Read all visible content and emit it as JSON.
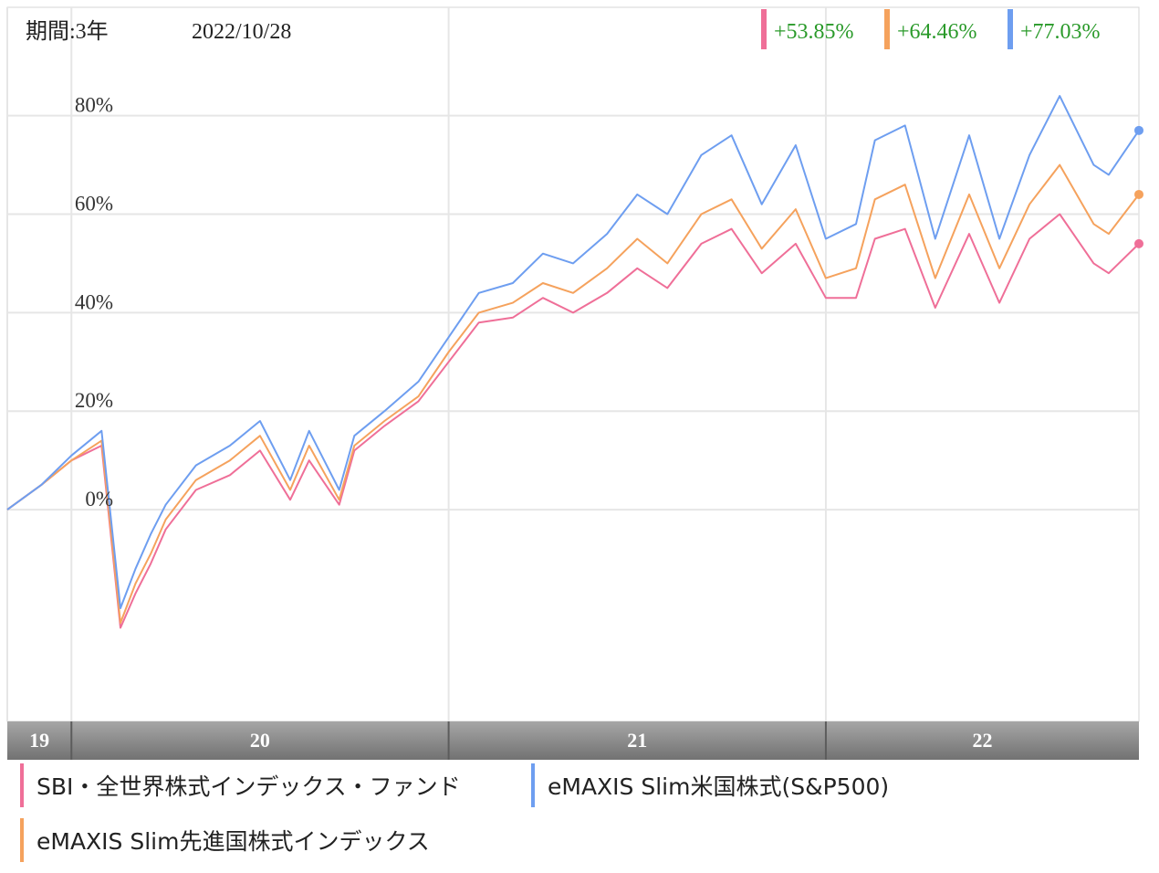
{
  "header": {
    "period_label": "期間:3年",
    "date": "2022/10/28"
  },
  "returns": [
    {
      "value": "+53.85%",
      "color": "#ef6f98"
    },
    {
      "value": "+64.46%",
      "color": "#f5a25d"
    },
    {
      "value": "+77.03%",
      "color": "#6e9ef0"
    }
  ],
  "colors": {
    "return_text": "#2a9a2a",
    "grid": "#e6e6e6",
    "axis_band": "#8a8a8a"
  },
  "legend": [
    {
      "label": "SBI・全世界株式インデックス・ファンド",
      "color": "#ef6f98"
    },
    {
      "label": "eMAXIS Slim米国株式(S&P500)",
      "color": "#6e9ef0"
    },
    {
      "label": "eMAXIS Slim先進国株式インデックス",
      "color": "#f5a25d"
    }
  ],
  "chart_data": {
    "type": "line",
    "y_unit": "%",
    "y_ticks": [
      "80%",
      "60%",
      "40%",
      "20%",
      "0%"
    ],
    "y_tick_values": [
      80,
      60,
      40,
      20,
      0
    ],
    "ylim": [
      -43,
      102
    ],
    "x_ticks": [
      "19",
      "20",
      "21",
      "22"
    ],
    "x_tick_values": [
      2019.83,
      2020.0,
      2021.0,
      2022.0
    ],
    "xlim": [
      2019.83,
      2022.83
    ],
    "grid": true,
    "series": [
      {
        "name": "SBI・全世界株式インデックス・ファンド",
        "color": "#ef6f98",
        "x": [
          2019.83,
          2019.92,
          2020.0,
          2020.08,
          2020.13,
          2020.17,
          2020.21,
          2020.25,
          2020.33,
          2020.42,
          2020.5,
          2020.58,
          2020.63,
          2020.71,
          2020.75,
          2020.83,
          2020.92,
          2021.0,
          2021.08,
          2021.17,
          2021.25,
          2021.33,
          2021.42,
          2021.5,
          2021.58,
          2021.67,
          2021.75,
          2021.83,
          2021.92,
          2022.0,
          2022.08,
          2022.13,
          2022.21,
          2022.29,
          2022.38,
          2022.46,
          2022.54,
          2022.62,
          2022.71,
          2022.75,
          2022.83
        ],
        "y": [
          0,
          5,
          10,
          13,
          -24,
          -17,
          -11,
          -4,
          4,
          7,
          12,
          2,
          10,
          1,
          12,
          17,
          22,
          30,
          38,
          39,
          43,
          40,
          44,
          49,
          45,
          54,
          57,
          48,
          54,
          43,
          43,
          55,
          57,
          41,
          56,
          42,
          55,
          60,
          50,
          48,
          54
        ]
      },
      {
        "name": "eMAXIS Slim先進国株式インデックス",
        "color": "#f5a25d",
        "x": [
          2019.83,
          2019.92,
          2020.0,
          2020.08,
          2020.13,
          2020.17,
          2020.21,
          2020.25,
          2020.33,
          2020.42,
          2020.5,
          2020.58,
          2020.63,
          2020.71,
          2020.75,
          2020.83,
          2020.92,
          2021.0,
          2021.08,
          2021.17,
          2021.25,
          2021.33,
          2021.42,
          2021.5,
          2021.58,
          2021.67,
          2021.75,
          2021.83,
          2021.92,
          2022.0,
          2022.08,
          2022.13,
          2022.21,
          2022.29,
          2022.38,
          2022.46,
          2022.54,
          2022.62,
          2022.71,
          2022.75,
          2022.83
        ],
        "y": [
          0,
          5,
          10,
          14,
          -23,
          -15,
          -9,
          -2,
          6,
          10,
          15,
          4,
          13,
          2,
          13,
          18,
          23,
          32,
          40,
          42,
          46,
          44,
          49,
          55,
          50,
          60,
          63,
          53,
          61,
          47,
          49,
          63,
          66,
          47,
          64,
          49,
          62,
          70,
          58,
          56,
          64
        ]
      },
      {
        "name": "eMAXIS Slim米国株式(S&P500)",
        "color": "#6e9ef0",
        "x": [
          2019.83,
          2019.92,
          2020.0,
          2020.08,
          2020.13,
          2020.17,
          2020.21,
          2020.25,
          2020.33,
          2020.42,
          2020.5,
          2020.58,
          2020.63,
          2020.71,
          2020.75,
          2020.83,
          2020.92,
          2021.0,
          2021.08,
          2021.17,
          2021.25,
          2021.33,
          2021.42,
          2021.5,
          2021.58,
          2021.67,
          2021.75,
          2021.83,
          2021.92,
          2022.0,
          2022.08,
          2022.13,
          2022.21,
          2022.29,
          2022.38,
          2022.46,
          2022.54,
          2022.62,
          2022.71,
          2022.75,
          2022.83
        ],
        "y": [
          0,
          5,
          11,
          16,
          -20,
          -12,
          -5,
          1,
          9,
          13,
          18,
          6,
          16,
          4,
          15,
          20,
          26,
          35,
          44,
          46,
          52,
          50,
          56,
          64,
          60,
          72,
          76,
          62,
          74,
          55,
          58,
          75,
          78,
          55,
          76,
          55,
          72,
          84,
          70,
          68,
          77
        ]
      }
    ]
  }
}
